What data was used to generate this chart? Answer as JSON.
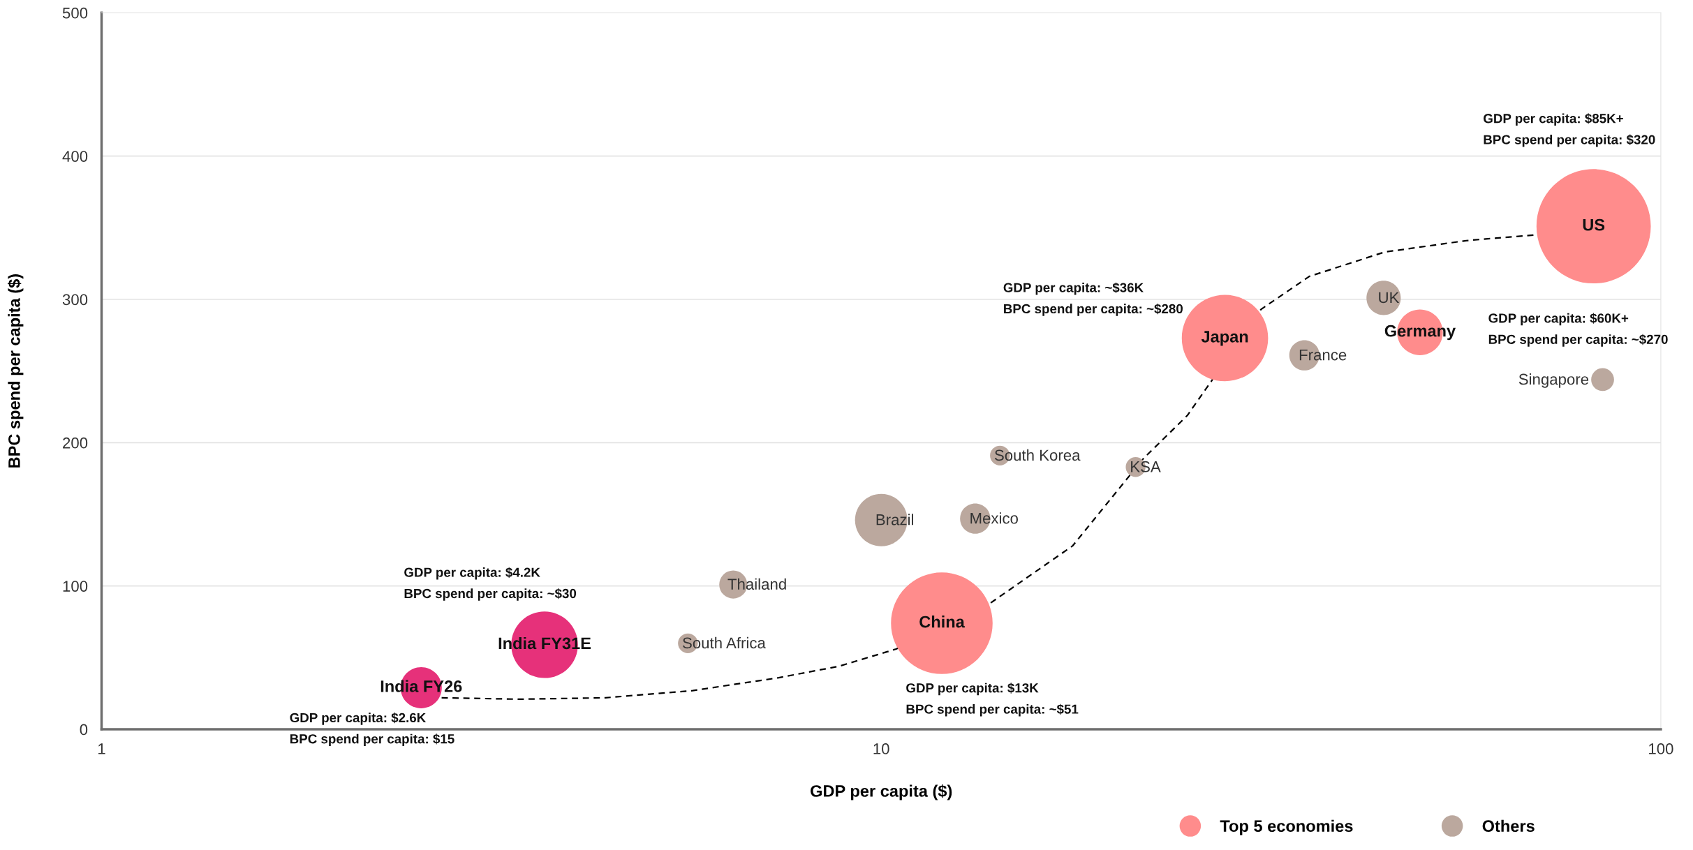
{
  "chart_data": {
    "type": "bubble",
    "xlabel": "GDP per capita ($)",
    "ylabel": "BPC spend per capita ($)",
    "log": "x",
    "xlim": [
      1,
      100
    ],
    "xticks": [
      1,
      10,
      100
    ],
    "ylim": [
      0,
      500
    ],
    "yticks": [
      0,
      100,
      200,
      300,
      400,
      500
    ],
    "grid": "y",
    "legend": "bottom",
    "marker": "circle",
    "series": [
      {
        "color": "#e6317a",
        "x": [
          2.57,
          3.7
        ],
        "values": [
          29,
          59
        ],
        "sizes": [
          0.13,
          0.34
        ]
      },
      {
        "name": "Top 5 economies",
        "color": "#ff8c8c",
        "x": [
          11.96,
          27.6,
          49.1,
          82.0
        ],
        "values": [
          74,
          273,
          277,
          351
        ],
        "sizes": [
          0.79,
          0.57,
          0.16,
          1
        ]
      },
      {
        "name": "Others",
        "color": "#bba89e",
        "x": [
          5.65,
          6.46,
          10.0,
          13.2,
          14.2,
          21.2,
          34.9,
          44.1,
          84.2
        ],
        "values": [
          60,
          101,
          146,
          147,
          191,
          183,
          261,
          301,
          244
        ],
        "sizes": [
          0.03,
          0.06,
          0.21,
          0.07,
          0.03,
          0.03,
          0.07,
          0.09,
          0.04
        ]
      },
      {
        "type": "line",
        "color": "#000000",
        "line_style": "dashed",
        "marker": "none",
        "x": [
          2.73,
          3.44,
          4.43,
          5.73,
          7.39,
          8.83,
          10.45,
          13.8,
          17.6,
          21.7,
          24.7,
          26.6,
          30.7,
          35.4,
          44.2,
          56.3,
          69.1
        ],
        "values": [
          22,
          21,
          22,
          27,
          36,
          44,
          56,
          88,
          128,
          189,
          219,
          244,
          293,
          316,
          333,
          341,
          345
        ]
      }
    ],
    "annotations": [
      {
        "text": "India FY26",
        "x": 2.57,
        "y": 29
      },
      {
        "text": "India FY31E",
        "x": 3.7,
        "y": 59
      },
      {
        "text": "China",
        "x": 11.96,
        "y": 74
      },
      {
        "text": "Japan",
        "x": 27.6,
        "y": 273
      },
      {
        "text": "Germany",
        "x": 49.1,
        "y": 277
      },
      {
        "text": "US",
        "x": 82.0,
        "y": 351
      },
      {
        "text": "South Africa",
        "x": 5.65,
        "y": 60
      },
      {
        "text": "Thailand",
        "x": 6.46,
        "y": 101
      },
      {
        "text": "Brazil",
        "x": 10.0,
        "y": 146
      },
      {
        "text": "Mexico",
        "x": 13.2,
        "y": 147
      },
      {
        "text": "South Korea",
        "x": 14.2,
        "y": 191
      },
      {
        "text": "KSA",
        "x": 21.2,
        "y": 183
      },
      {
        "text": "France",
        "x": 34.9,
        "y": 261
      },
      {
        "text": "UK",
        "x": 44.1,
        "y": 301
      },
      {
        "text": "Singapore",
        "x": 84.2,
        "y": 244
      },
      "GDP per capita: $2.6K\nBPC spend per capita: $15",
      "GDP per capita: $4.2K\nBPC spend per capita: ~$30",
      "GDP per capita: $13K\nBPC spend per capita: ~$51",
      "GDP per capita: ~$36K\nBPC spend per capita: ~$280",
      "GDP per capita: $60K+\nBPC spend per capita: ~$270",
      "GDP per capita: $85K+\nBPC spend per capita: $320"
    ]
  }
}
